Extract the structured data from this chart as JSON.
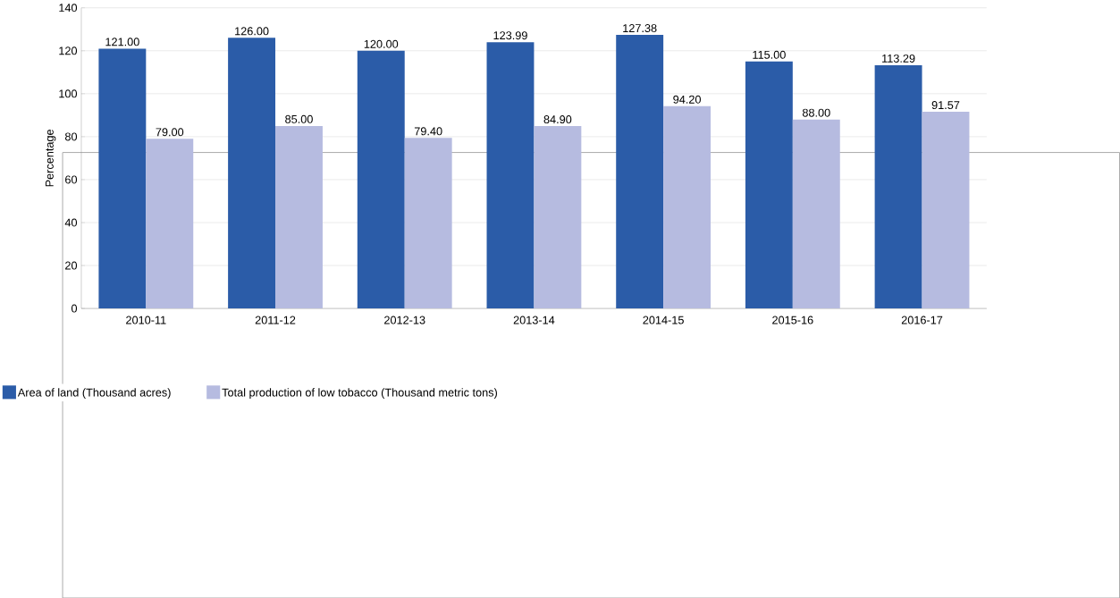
{
  "chart_data": {
    "type": "bar",
    "ylabel": "Percentage",
    "categories": [
      "2010-11",
      "2011-12",
      "2012-13",
      "2013-14",
      "2014-15",
      "2015-16",
      "2016-17"
    ],
    "series": [
      {
        "name": "Area of land (Thousand acres)",
        "color": "#2b5ca8",
        "values": [
          121.0,
          126.0,
          120.0,
          123.99,
          127.38,
          115.0,
          113.29
        ],
        "value_labels": [
          "121.00",
          "126.00",
          "120.00",
          "123.99",
          "127.38",
          "115.00",
          "113.29"
        ]
      },
      {
        "name": "Total production of low tobacco (Thousand metric tons)",
        "color": "#b6bbe0",
        "values": [
          79.0,
          85.0,
          79.4,
          84.9,
          94.2,
          88.0,
          91.57
        ],
        "value_labels": [
          "79.00",
          "85.00",
          "79.40",
          "84.90",
          "94.20",
          "88.00",
          "91.57"
        ]
      }
    ],
    "ylim": [
      0,
      140
    ],
    "yticks": [
      0,
      20,
      40,
      60,
      80,
      100,
      120,
      140
    ],
    "grid": "y",
    "legend": "bottom left"
  }
}
